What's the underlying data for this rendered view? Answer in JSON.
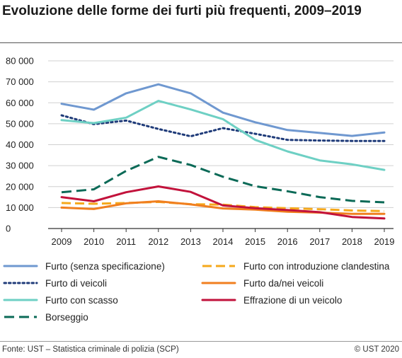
{
  "title": "Evoluzione delle forme dei furti più frequenti, 2009–2019",
  "source": "Fonte: UST – Statistica criminale di polizia (SCP)",
  "copyright": "© UST 2020",
  "chart_data": {
    "type": "line",
    "title": "Evoluzione delle forme dei furti più frequenti, 2009–2019",
    "xlabel": "",
    "ylabel": "",
    "x": [
      2009,
      2010,
      2011,
      2012,
      2013,
      2014,
      2015,
      2016,
      2017,
      2018,
      2019
    ],
    "x_tick_labels": [
      "2009",
      "2010",
      "2011",
      "2012",
      "2013",
      "2014",
      "2015",
      "2016",
      "2017",
      "2018",
      "2019"
    ],
    "ylim": [
      0,
      80000
    ],
    "y_ticks": [
      0,
      10000,
      20000,
      30000,
      40000,
      50000,
      60000,
      70000,
      80000
    ],
    "y_tick_labels": [
      "0",
      "10 000",
      "20 000",
      "30 000",
      "40 000",
      "50 000",
      "60 000",
      "70 000",
      "80 000"
    ],
    "grid": "horizontal",
    "legend_position": "bottom",
    "series": [
      {
        "name": "Furto (senza specificazione)",
        "color": "#6f98d0",
        "style": "solid",
        "values": [
          59500,
          56700,
          64500,
          68800,
          64500,
          55300,
          50700,
          47000,
          45600,
          44200,
          45800
        ]
      },
      {
        "name": "Furto con introduzione clandestina",
        "color": "#f5a81c",
        "style": "dashed",
        "values": [
          12200,
          11800,
          12200,
          12700,
          11600,
          11400,
          10200,
          9700,
          9200,
          8600,
          8300
        ]
      },
      {
        "name": "Furto di veicoli",
        "color": "#1f3b79",
        "style": "dotted",
        "values": [
          54000,
          49800,
          51500,
          47500,
          44000,
          47900,
          45200,
          42300,
          42000,
          41800,
          41800
        ]
      },
      {
        "name": "Furto da/nei veicoli",
        "color": "#f07f1f",
        "style": "solid",
        "values": [
          10000,
          9300,
          12000,
          13000,
          11500,
          9600,
          9000,
          8000,
          7600,
          7000,
          7000
        ]
      },
      {
        "name": "Furto con scasso",
        "color": "#6ed0c4",
        "style": "solid",
        "values": [
          51700,
          50300,
          52900,
          60900,
          56800,
          52200,
          42300,
          36800,
          32500,
          30600,
          28000
        ]
      },
      {
        "name": "Effrazione di un veicolo",
        "color": "#c2123b",
        "style": "solid",
        "values": [
          15000,
          13000,
          17300,
          20100,
          17500,
          11000,
          9700,
          8800,
          7800,
          5500,
          4800
        ]
      },
      {
        "name": "Borseggio",
        "color": "#0b6a57",
        "style": "longdash",
        "values": [
          17300,
          18700,
          27500,
          34200,
          30300,
          24700,
          20200,
          17800,
          15000,
          13200,
          12500
        ]
      }
    ]
  }
}
